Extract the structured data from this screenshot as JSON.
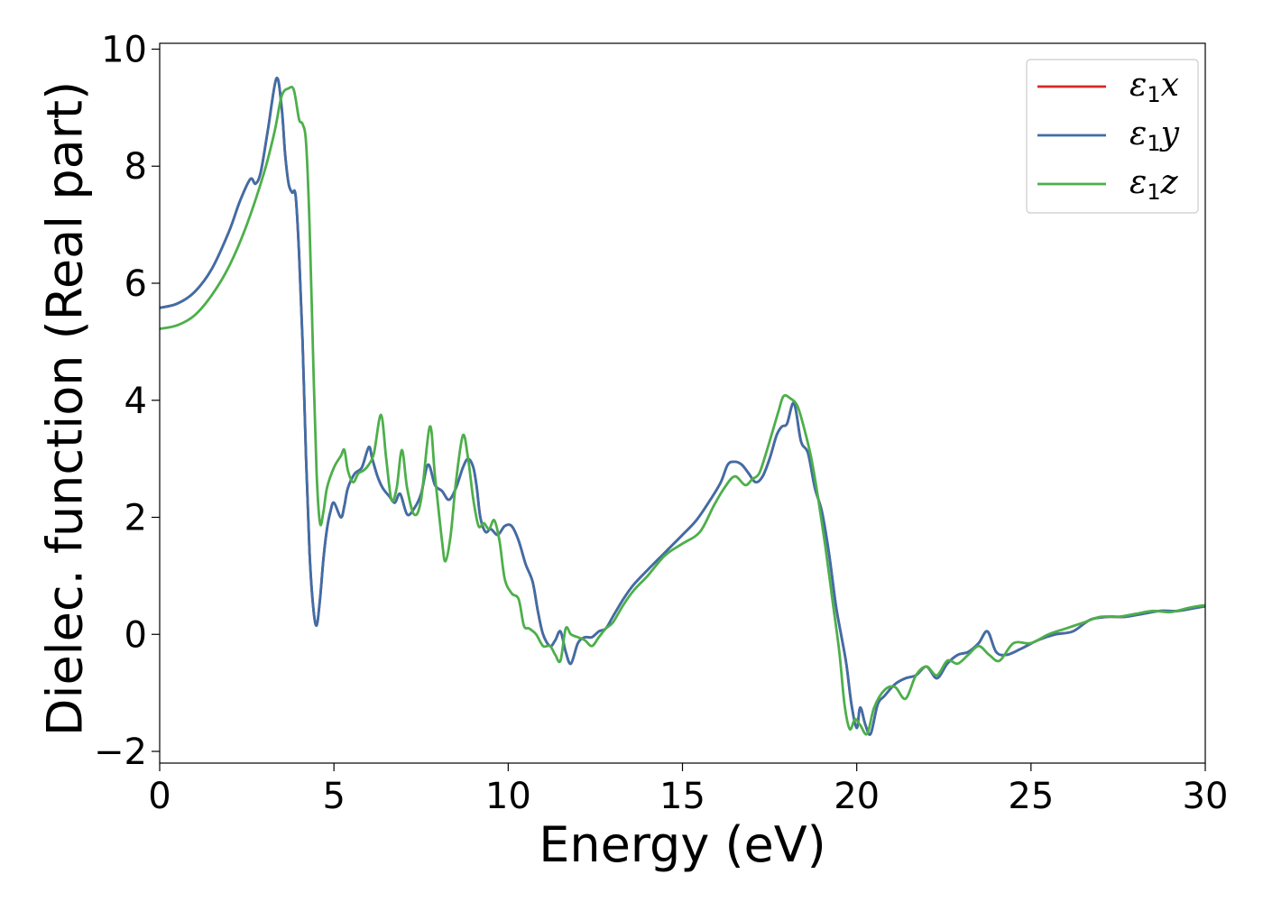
{
  "chart_data": {
    "type": "line",
    "xlabel": "Energy (eV)",
    "ylabel": "Dielec. function (Real part)",
    "xlim": [
      0,
      30
    ],
    "ylim": [
      -2.2,
      10.1
    ],
    "xticks": [
      0,
      5,
      10,
      15,
      20,
      25,
      30
    ],
    "yticks": [
      -2,
      0,
      2,
      4,
      6,
      8,
      10
    ],
    "xtick_labels": [
      "0",
      "5",
      "10",
      "15",
      "20",
      "25",
      "30"
    ],
    "ytick_labels": [
      "−2",
      "0",
      "2",
      "4",
      "6",
      "8",
      "10"
    ],
    "grid": false,
    "legend_position": "top-right",
    "series": [
      {
        "name": "ε1x",
        "color": "#d62728",
        "x": [
          0,
          0.5,
          1.0,
          1.5,
          2.0,
          2.3,
          2.6,
          2.75,
          2.9,
          3.1,
          3.35,
          3.5,
          3.6,
          3.7,
          3.8,
          3.9,
          4.0,
          4.1,
          4.2,
          4.3,
          4.4,
          4.5,
          4.6,
          4.7,
          4.8,
          4.9,
          5.0,
          5.2,
          5.3,
          5.4,
          5.6,
          5.8,
          6.0,
          6.1,
          6.25,
          6.4,
          6.6,
          6.75,
          6.9,
          7.1,
          7.3,
          7.5,
          7.7,
          7.9,
          8.1,
          8.3,
          8.5,
          8.7,
          8.85,
          9.0,
          9.1,
          9.2,
          9.35,
          9.5,
          9.7,
          9.9,
          10.1,
          10.3,
          10.5,
          10.7,
          10.85,
          11.0,
          11.2,
          11.35,
          11.5,
          11.65,
          11.8,
          12.0,
          12.2,
          12.4,
          12.6,
          12.8,
          13.0,
          13.3,
          13.6,
          14.0,
          14.5,
          15.0,
          15.4,
          15.8,
          16.1,
          16.3,
          16.5,
          16.7,
          16.9,
          17.1,
          17.3,
          17.5,
          17.7,
          17.85,
          18.0,
          18.2,
          18.4,
          18.6,
          18.8,
          19.0,
          19.2,
          19.4,
          19.55,
          19.7,
          19.85,
          20.0,
          20.1,
          20.25,
          20.4,
          20.6,
          20.8,
          21.1,
          21.4,
          21.7,
          22.0,
          22.3,
          22.6,
          22.9,
          23.2,
          23.5,
          23.75,
          24.0,
          24.3,
          24.7,
          25.2,
          25.7,
          26.2,
          26.7,
          27.2,
          27.7,
          28.2,
          28.7,
          29.2,
          29.7,
          30.0
        ],
        "y": [
          5.58,
          5.65,
          5.85,
          6.25,
          6.9,
          7.4,
          7.78,
          7.7,
          7.9,
          8.6,
          9.5,
          9.0,
          8.2,
          7.7,
          7.55,
          7.5,
          6.5,
          5.0,
          3.0,
          1.4,
          0.5,
          0.15,
          0.6,
          1.3,
          1.8,
          2.1,
          2.25,
          2.0,
          2.2,
          2.5,
          2.75,
          2.85,
          3.2,
          3.0,
          2.7,
          2.5,
          2.35,
          2.25,
          2.4,
          2.05,
          2.15,
          2.4,
          2.9,
          2.55,
          2.45,
          2.3,
          2.5,
          2.85,
          3.0,
          2.85,
          2.5,
          2.0,
          1.75,
          1.8,
          1.7,
          1.85,
          1.85,
          1.6,
          1.2,
          0.9,
          0.4,
          0.0,
          -0.2,
          -0.1,
          0.05,
          -0.3,
          -0.5,
          -0.15,
          -0.05,
          -0.05,
          0.05,
          0.1,
          0.3,
          0.6,
          0.85,
          1.1,
          1.4,
          1.7,
          1.95,
          2.3,
          2.6,
          2.9,
          2.95,
          2.9,
          2.75,
          2.6,
          2.7,
          3.0,
          3.4,
          3.55,
          3.6,
          3.95,
          3.3,
          3.1,
          2.5,
          2.1,
          1.4,
          0.5,
          0.0,
          -0.5,
          -1.2,
          -1.6,
          -1.25,
          -1.55,
          -1.7,
          -1.2,
          -1.05,
          -0.85,
          -0.75,
          -0.7,
          -0.55,
          -0.75,
          -0.5,
          -0.35,
          -0.3,
          -0.15,
          0.05,
          -0.3,
          -0.35,
          -0.25,
          -0.1,
          0.0,
          0.05,
          0.25,
          0.3,
          0.3,
          0.35,
          0.4,
          0.4,
          0.45,
          0.48
        ]
      },
      {
        "name": "ε1y",
        "color": "#3e6ea8",
        "x": [
          0,
          0.5,
          1.0,
          1.5,
          2.0,
          2.3,
          2.6,
          2.75,
          2.9,
          3.1,
          3.35,
          3.5,
          3.6,
          3.7,
          3.8,
          3.9,
          4.0,
          4.1,
          4.2,
          4.3,
          4.4,
          4.5,
          4.6,
          4.7,
          4.8,
          4.9,
          5.0,
          5.2,
          5.3,
          5.4,
          5.6,
          5.8,
          6.0,
          6.1,
          6.25,
          6.4,
          6.6,
          6.75,
          6.9,
          7.1,
          7.3,
          7.5,
          7.7,
          7.9,
          8.1,
          8.3,
          8.5,
          8.7,
          8.85,
          9.0,
          9.1,
          9.2,
          9.35,
          9.5,
          9.7,
          9.9,
          10.1,
          10.3,
          10.5,
          10.7,
          10.85,
          11.0,
          11.2,
          11.35,
          11.5,
          11.65,
          11.8,
          12.0,
          12.2,
          12.4,
          12.6,
          12.8,
          13.0,
          13.3,
          13.6,
          14.0,
          14.5,
          15.0,
          15.4,
          15.8,
          16.1,
          16.3,
          16.5,
          16.7,
          16.9,
          17.1,
          17.3,
          17.5,
          17.7,
          17.85,
          18.0,
          18.2,
          18.4,
          18.6,
          18.8,
          19.0,
          19.2,
          19.4,
          19.55,
          19.7,
          19.85,
          20.0,
          20.1,
          20.25,
          20.4,
          20.6,
          20.8,
          21.1,
          21.4,
          21.7,
          22.0,
          22.3,
          22.6,
          22.9,
          23.2,
          23.5,
          23.75,
          24.0,
          24.3,
          24.7,
          25.2,
          25.7,
          26.2,
          26.7,
          27.2,
          27.7,
          28.2,
          28.7,
          29.2,
          29.7,
          30.0
        ],
        "y": [
          5.58,
          5.65,
          5.85,
          6.25,
          6.9,
          7.4,
          7.78,
          7.7,
          7.9,
          8.6,
          9.5,
          9.0,
          8.2,
          7.7,
          7.55,
          7.5,
          6.5,
          5.0,
          3.0,
          1.4,
          0.5,
          0.15,
          0.6,
          1.3,
          1.8,
          2.1,
          2.25,
          2.0,
          2.2,
          2.5,
          2.75,
          2.85,
          3.2,
          3.0,
          2.7,
          2.5,
          2.35,
          2.25,
          2.4,
          2.05,
          2.15,
          2.4,
          2.9,
          2.55,
          2.45,
          2.3,
          2.5,
          2.85,
          3.0,
          2.85,
          2.5,
          2.0,
          1.75,
          1.8,
          1.7,
          1.85,
          1.85,
          1.6,
          1.2,
          0.9,
          0.4,
          0.0,
          -0.2,
          -0.1,
          0.05,
          -0.3,
          -0.5,
          -0.15,
          -0.05,
          -0.05,
          0.05,
          0.1,
          0.3,
          0.6,
          0.85,
          1.1,
          1.4,
          1.7,
          1.95,
          2.3,
          2.6,
          2.9,
          2.95,
          2.9,
          2.75,
          2.6,
          2.7,
          3.0,
          3.4,
          3.55,
          3.6,
          3.95,
          3.3,
          3.1,
          2.5,
          2.1,
          1.4,
          0.5,
          0.0,
          -0.5,
          -1.2,
          -1.6,
          -1.25,
          -1.55,
          -1.7,
          -1.2,
          -1.05,
          -0.85,
          -0.75,
          -0.7,
          -0.55,
          -0.75,
          -0.5,
          -0.35,
          -0.3,
          -0.15,
          0.05,
          -0.3,
          -0.35,
          -0.25,
          -0.1,
          0.0,
          0.05,
          0.25,
          0.3,
          0.3,
          0.35,
          0.4,
          0.4,
          0.45,
          0.48
        ]
      },
      {
        "name": "ε1z",
        "color": "#4daf4a",
        "x": [
          0,
          0.5,
          1.0,
          1.5,
          2.0,
          2.5,
          3.0,
          3.3,
          3.5,
          3.7,
          3.85,
          4.0,
          4.1,
          4.2,
          4.3,
          4.4,
          4.5,
          4.6,
          4.7,
          4.8,
          5.0,
          5.2,
          5.3,
          5.4,
          5.55,
          5.7,
          5.85,
          6.0,
          6.15,
          6.35,
          6.5,
          6.65,
          6.8,
          6.95,
          7.1,
          7.3,
          7.5,
          7.75,
          7.9,
          8.1,
          8.2,
          8.35,
          8.5,
          8.7,
          8.85,
          9.0,
          9.15,
          9.3,
          9.45,
          9.6,
          9.75,
          9.9,
          10.1,
          10.3,
          10.45,
          10.6,
          10.8,
          11.0,
          11.2,
          11.35,
          11.5,
          11.65,
          11.8,
          12.0,
          12.2,
          12.4,
          12.6,
          12.8,
          13.0,
          13.3,
          13.6,
          14.0,
          14.5,
          15.0,
          15.5,
          15.9,
          16.2,
          16.5,
          16.8,
          17.0,
          17.2,
          17.4,
          17.6,
          17.75,
          17.9,
          18.1,
          18.3,
          18.5,
          18.7,
          18.9,
          19.1,
          19.3,
          19.5,
          19.65,
          19.8,
          19.95,
          20.1,
          20.3,
          20.5,
          20.8,
          21.1,
          21.4,
          21.7,
          22.0,
          22.3,
          22.6,
          22.9,
          23.2,
          23.5,
          23.8,
          24.1,
          24.5,
          25.0,
          25.5,
          26.0,
          26.5,
          27.0,
          27.5,
          28.0,
          28.5,
          29.0,
          29.5,
          30.0
        ],
        "y": [
          5.22,
          5.28,
          5.45,
          5.8,
          6.3,
          7.0,
          7.9,
          8.6,
          9.2,
          9.33,
          9.3,
          8.8,
          8.72,
          8.4,
          7.0,
          4.8,
          2.8,
          1.9,
          2.1,
          2.5,
          2.85,
          3.05,
          3.15,
          2.8,
          2.6,
          2.75,
          2.8,
          2.9,
          3.1,
          3.75,
          3.0,
          2.3,
          2.5,
          3.15,
          2.5,
          2.05,
          2.3,
          3.55,
          2.7,
          1.6,
          1.25,
          1.7,
          2.6,
          3.4,
          3.0,
          2.3,
          1.85,
          1.9,
          1.8,
          1.95,
          1.6,
          0.95,
          0.7,
          0.6,
          0.15,
          0.1,
          0.0,
          -0.2,
          -0.2,
          -0.35,
          -0.45,
          0.1,
          0.0,
          -0.05,
          -0.1,
          -0.2,
          -0.05,
          0.1,
          0.2,
          0.5,
          0.75,
          1.0,
          1.35,
          1.55,
          1.75,
          2.2,
          2.5,
          2.7,
          2.55,
          2.65,
          2.75,
          3.1,
          3.5,
          3.8,
          4.07,
          4.03,
          3.9,
          3.5,
          3.0,
          2.3,
          1.5,
          0.6,
          -0.3,
          -1.2,
          -1.62,
          -1.45,
          -1.55,
          -1.7,
          -1.25,
          -0.95,
          -0.9,
          -1.1,
          -0.7,
          -0.55,
          -0.7,
          -0.45,
          -0.5,
          -0.35,
          -0.2,
          -0.35,
          -0.45,
          -0.15,
          -0.15,
          0.0,
          0.1,
          0.2,
          0.3,
          0.3,
          0.35,
          0.4,
          0.38,
          0.45,
          0.5
        ]
      }
    ]
  }
}
